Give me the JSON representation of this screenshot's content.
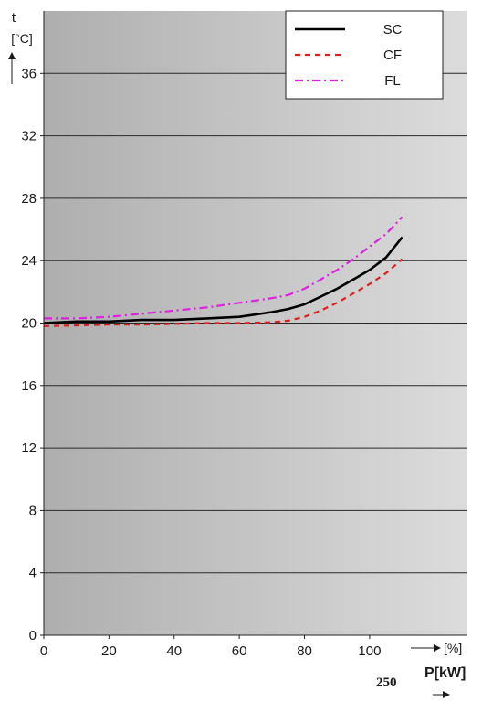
{
  "chart_data": {
    "type": "line",
    "title": "",
    "ylabel": "t",
    "yunit": "[°C]",
    "xunit": "[%]",
    "xlim": [
      0,
      130
    ],
    "ylim": [
      0,
      40
    ],
    "xticks": [
      0,
      20,
      40,
      60,
      80,
      100
    ],
    "yticks": [
      0,
      4,
      8,
      12,
      16,
      20,
      24,
      28,
      32,
      36
    ],
    "grid": "horizontal",
    "legend_position": "top-right",
    "series": [
      {
        "name": "SC",
        "color": "#000000",
        "style": "solid",
        "x": [
          0,
          10,
          20,
          30,
          40,
          50,
          60,
          70,
          75,
          80,
          85,
          90,
          95,
          100,
          105,
          110
        ],
        "y": [
          20.0,
          20.1,
          20.1,
          20.2,
          20.2,
          20.3,
          20.4,
          20.7,
          20.9,
          21.2,
          21.7,
          22.2,
          22.8,
          23.4,
          24.2,
          25.5
        ]
      },
      {
        "name": "CF",
        "color": "#e02020",
        "style": "dashed",
        "x": [
          0,
          10,
          20,
          30,
          40,
          50,
          60,
          70,
          75,
          80,
          85,
          90,
          95,
          100,
          105,
          110
        ],
        "y": [
          19.8,
          19.85,
          19.9,
          19.9,
          19.95,
          20.0,
          20.0,
          20.05,
          20.15,
          20.4,
          20.8,
          21.3,
          21.9,
          22.5,
          23.2,
          24.1
        ]
      },
      {
        "name": "FL",
        "color": "#e020e0",
        "style": "dashdot",
        "x": [
          0,
          10,
          20,
          30,
          40,
          50,
          60,
          70,
          75,
          80,
          85,
          90,
          95,
          100,
          105,
          110
        ],
        "y": [
          20.3,
          20.3,
          20.4,
          20.6,
          20.8,
          21.0,
          21.3,
          21.6,
          21.8,
          22.2,
          22.8,
          23.4,
          24.1,
          24.9,
          25.7,
          26.8
        ]
      }
    ]
  },
  "annotations": {
    "power_label": "P[kW]",
    "power_value": "250"
  }
}
